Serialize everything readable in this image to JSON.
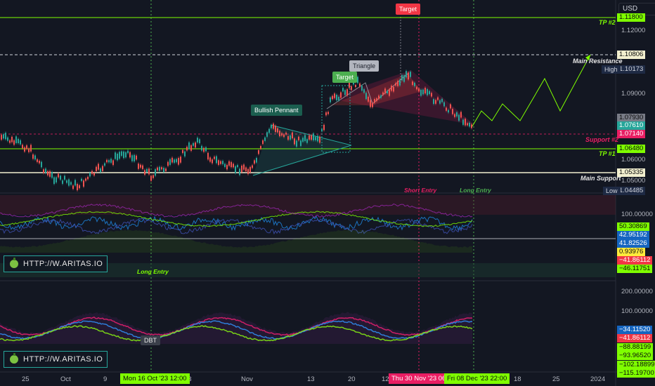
{
  "currency": "USD",
  "price_axis": {
    "ticks": [
      "1.12000",
      "1.09000",
      "1.06000",
      "1.05000"
    ],
    "tags": [
      {
        "name": "tp2-price-tag",
        "value": "1.11800",
        "bg": "#7fff00",
        "fg": "#0a0a0a"
      },
      {
        "name": "main-resistance-price-tag",
        "value": "1.10806",
        "bg": "#f2efcf",
        "fg": "#0a0a0a"
      },
      {
        "name": "high-price-tag",
        "value": "1.10173",
        "bg": "#1e2a44",
        "fg": "#d1d4dc"
      },
      {
        "name": "current-price-tag-1",
        "value": "1.07930",
        "bg": "#787b86",
        "fg": "#0a0a0a"
      },
      {
        "name": "current-price-tag-2",
        "value": "1.07610",
        "bg": "#26a69a",
        "fg": "#ffffff"
      },
      {
        "name": "support2-price-tag",
        "value": "1.07140",
        "bg": "#e91e63",
        "fg": "#ffffff"
      },
      {
        "name": "tp1-price-tag",
        "value": "1.06480",
        "bg": "#7fff00",
        "fg": "#0a0a0a"
      },
      {
        "name": "main-support-price-tag",
        "value": "1.05335",
        "bg": "#f2efcf",
        "fg": "#0a0a0a"
      },
      {
        "name": "low-price-tag",
        "value": "1.04485",
        "bg": "#1e2a44",
        "fg": "#d1d4dc"
      }
    ],
    "high_label": "High",
    "low_label": "Low"
  },
  "osc1_axis": {
    "tick": "100.00000",
    "tags": [
      {
        "value": "50.30869",
        "bg": "#7fff00",
        "fg": "#0a0a0a"
      },
      {
        "value": "42.95192",
        "bg": "#1565c0",
        "fg": "#ffffff"
      },
      {
        "value": "41.82526",
        "bg": "#1565c0",
        "fg": "#ffffff"
      },
      {
        "value": "0.93976",
        "bg": "#ffeb3b",
        "fg": "#0a0a0a"
      },
      {
        "value": "−41.86112",
        "bg": "#f23645",
        "fg": "#ffffff"
      },
      {
        "value": "−46.11751",
        "bg": "#7fff00",
        "fg": "#0a0a0a"
      }
    ]
  },
  "osc2_axis": {
    "ticks": [
      "200.00000",
      "100.00000"
    ],
    "tags": [
      {
        "value": "−34.11520",
        "bg": "#1565c0",
        "fg": "#ffffff"
      },
      {
        "value": "−41.86112",
        "bg": "#f23645",
        "fg": "#ffffff"
      },
      {
        "value": "−88.88199",
        "bg": "#7fff00",
        "fg": "#0a0a0a"
      },
      {
        "value": "−93.96520",
        "bg": "#7fff00",
        "fg": "#0a0a0a"
      },
      {
        "value": "−102.18899",
        "bg": "#7fff00",
        "fg": "#0a0a0a"
      },
      {
        "value": "−115.19700",
        "bg": "#7fff00",
        "fg": "#0a0a0a"
      }
    ]
  },
  "chart_labels": {
    "tp2": "TP #2",
    "main_resistance": "Main Resistance",
    "support2": "Support #2",
    "tp1": "TP #1",
    "main_support": "Main Support",
    "short_entry": "Short Entry",
    "long_entry_right": "Long Entry",
    "long_entry_left": "Long Entry"
  },
  "badges": {
    "target_top": "Target",
    "triangle": "Triangle",
    "target_mid": "Target",
    "bullish_pennant": "Bullish Pennant",
    "dbt": "DBT"
  },
  "brand_text": "HTTP://W.ARITAS.IO",
  "time_axis": {
    "ticks": [
      "25",
      "Oct",
      "9",
      "23",
      "Nov",
      "13",
      "20",
      "12",
      "18",
      "25",
      "2024"
    ],
    "tags": [
      {
        "value": "Mon 16 Oct '23  12:00",
        "bg": "#7fff00",
        "fg": "#0a0a0a"
      },
      {
        "value": "Thu 30 Nov '23  06:00",
        "bg": "#e91e63",
        "fg": "#ffffff"
      },
      {
        "value": "Fri 08 Dec '23  22:00",
        "bg": "#7fff00",
        "fg": "#0a0a0a"
      }
    ]
  }
}
